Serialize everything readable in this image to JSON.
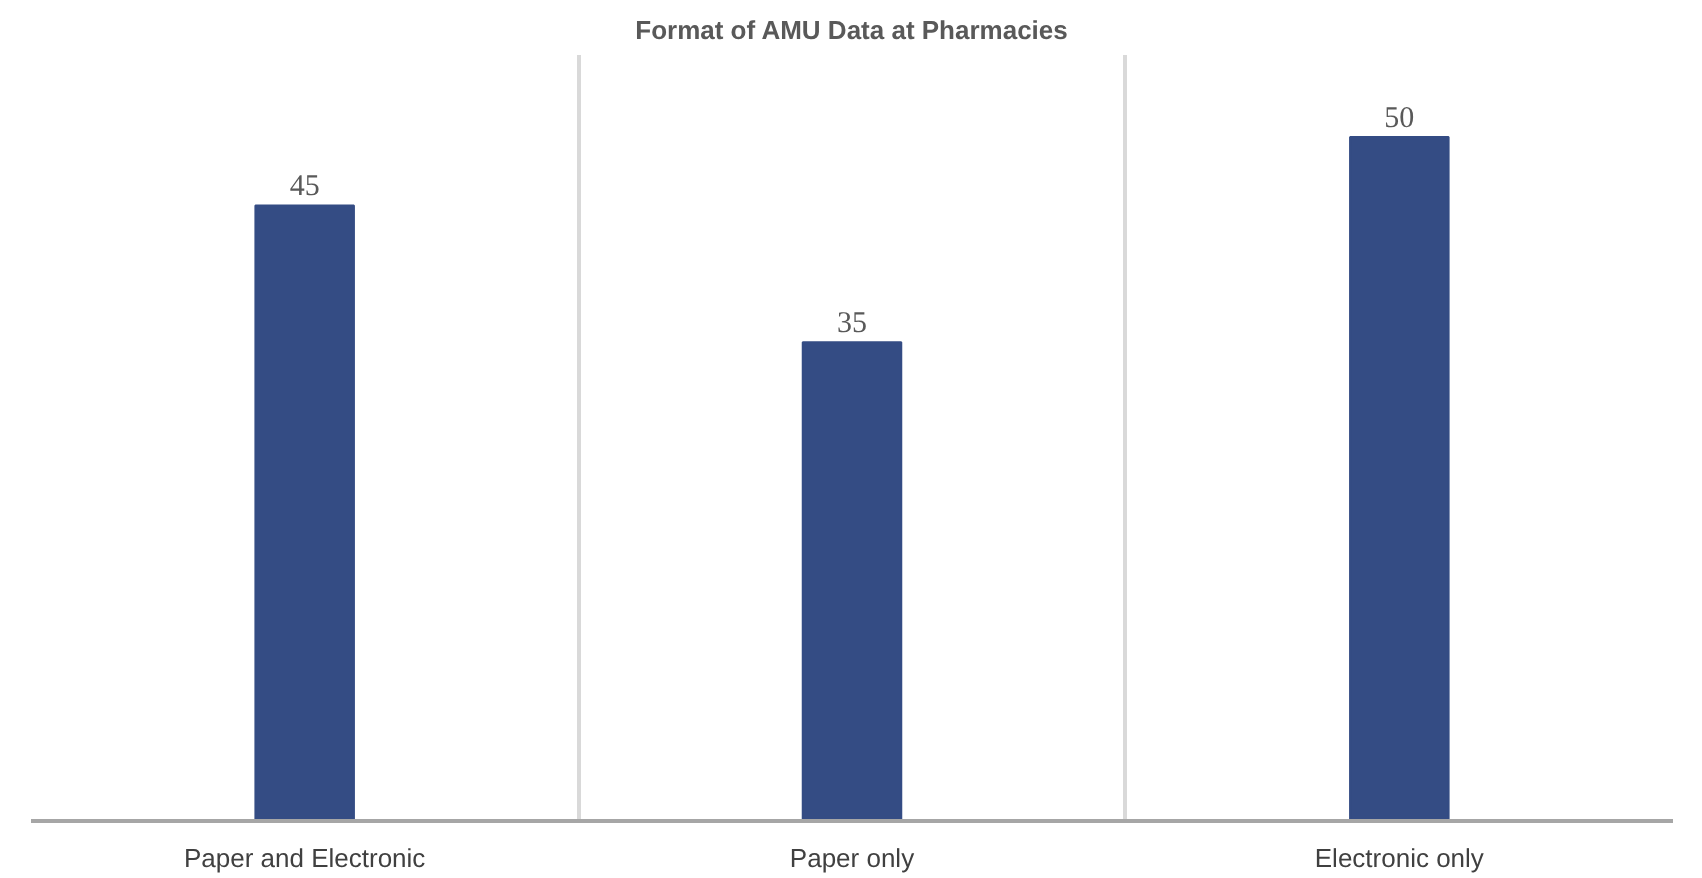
{
  "chart_data": {
    "type": "bar",
    "title": "Format of AMU Data at Pharmacies",
    "categories": [
      "Paper and Electronic",
      "Paper only",
      "Electronic only"
    ],
    "values": [
      45,
      35,
      50
    ],
    "color": "#344c84",
    "data_labels": true,
    "grid": "x"
  }
}
